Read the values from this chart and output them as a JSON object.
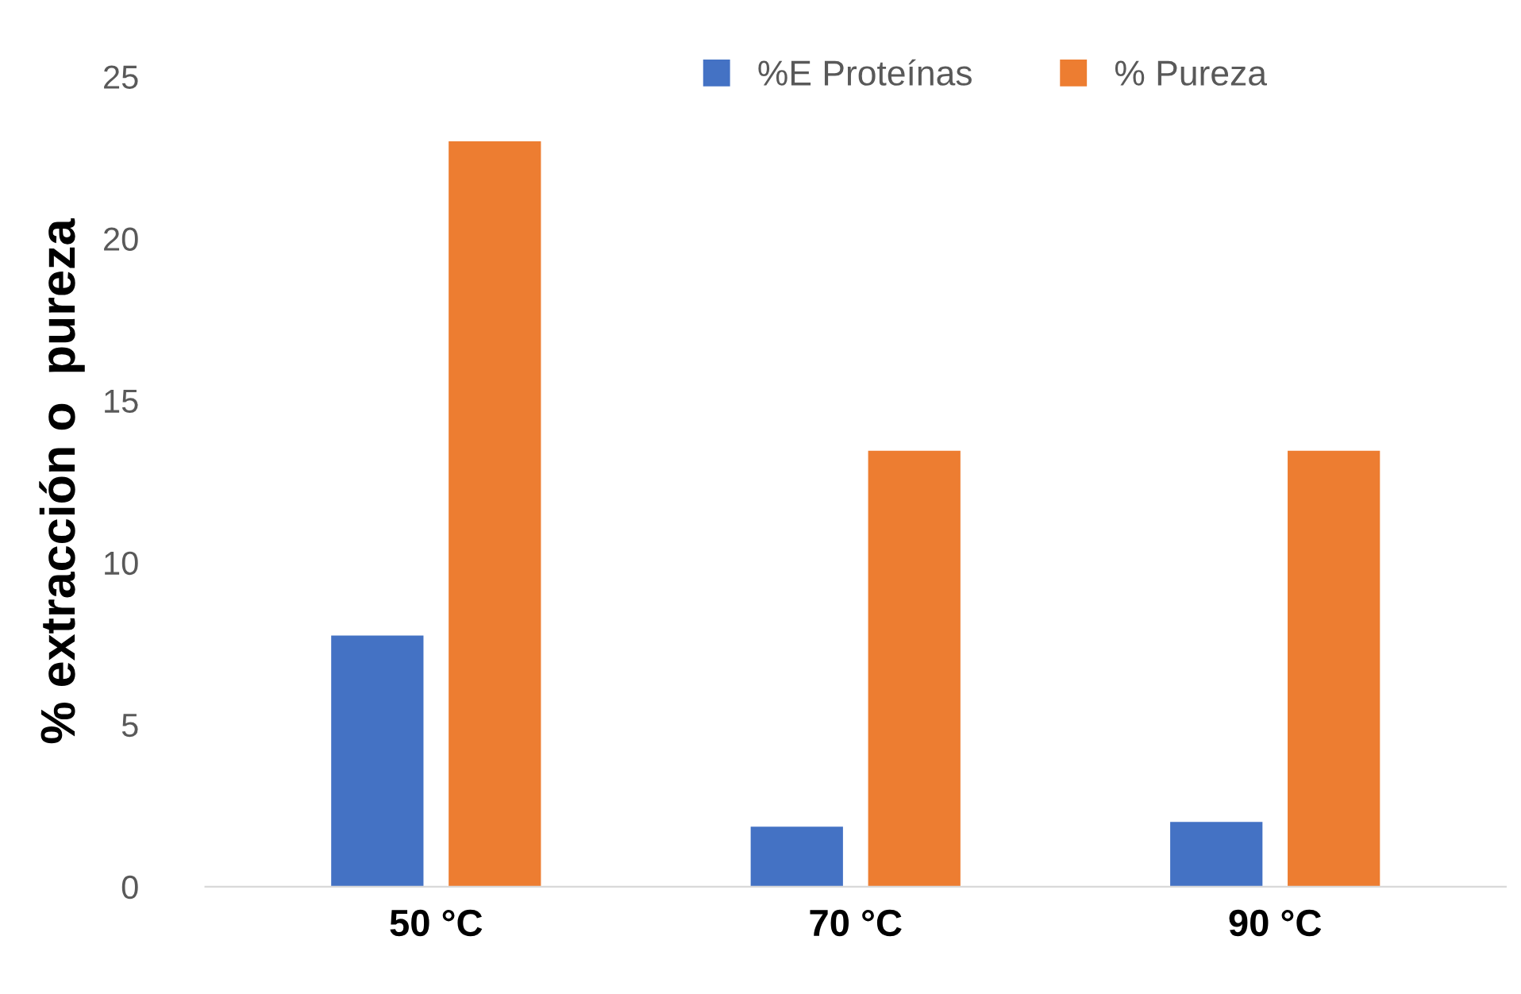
{
  "chart_data": {
    "type": "bar",
    "ylabel": "% extracción o  pureza",
    "categories": [
      "50 °C",
      "70 °C",
      "90 °C"
    ],
    "series": [
      {
        "name": "%E Proteínas",
        "color": "#4472c4",
        "values": [
          7.75,
          1.85,
          2.0
        ]
      },
      {
        "name": "% Pureza",
        "color": "#ed7d31",
        "values": [
          23.0,
          13.45,
          13.45
        ]
      }
    ],
    "ylim": [
      0,
      25
    ],
    "yticks": [
      0,
      5,
      10,
      15,
      20,
      25
    ],
    "grid": false,
    "legend": "top"
  }
}
